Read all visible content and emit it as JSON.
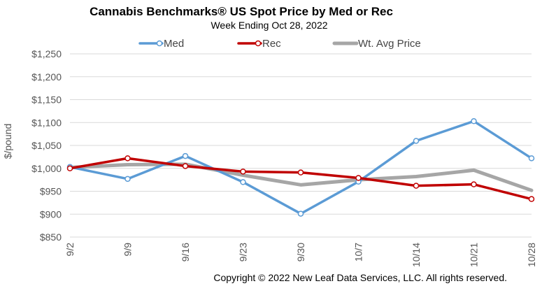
{
  "chart_data": {
    "type": "line",
    "title": "Cannabis Benchmarks® US Spot Price by Med or Rec",
    "subtitle": "Week Ending Oct 28, 2022",
    "ylabel": "$/pound",
    "xlabel": "",
    "categories": [
      "9/2",
      "9/9",
      "9/16",
      "9/23",
      "9/30",
      "10/7",
      "10/14",
      "10/21",
      "10/28"
    ],
    "ylim": [
      850,
      1250
    ],
    "yticks": [
      850,
      900,
      950,
      1000,
      1050,
      1100,
      1150,
      1200,
      1250
    ],
    "ytick_labels": [
      "$850",
      "$900",
      "$950",
      "$1,000",
      "$1,050",
      "$1,100",
      "$1,150",
      "$1,200",
      "$1,250"
    ],
    "grid": true,
    "legend_position": "top",
    "series": [
      {
        "name": "Med",
        "color": "#5b9bd5",
        "markers": true,
        "values": [
          1003,
          977,
          1027,
          970,
          901,
          971,
          1060,
          1103,
          1022
        ]
      },
      {
        "name": "Rec",
        "color": "#c00000",
        "markers": true,
        "values": [
          1000,
          1022,
          1005,
          993,
          991,
          979,
          962,
          965,
          933
        ]
      },
      {
        "name": "Wt. Avg Price",
        "color": "#a6a6a6",
        "markers": false,
        "values": [
          1002,
          1008,
          1009,
          985,
          964,
          975,
          982,
          996,
          952
        ]
      }
    ],
    "footer": "Copyright © 2022 New Leaf Data Services, LLC. All rights reserved."
  }
}
